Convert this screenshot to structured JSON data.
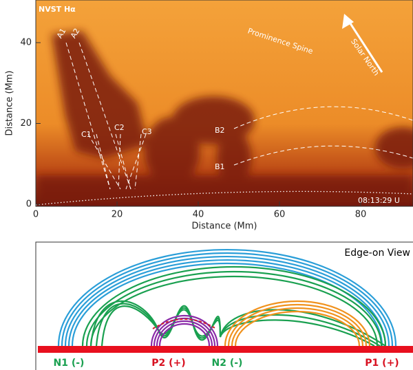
{
  "image_panel": {
    "instrument": "NVST Hα",
    "timestamp": "08:13:29 U",
    "annotations": [
      "Prominence Spine",
      "Solar North",
      "A1",
      "A2",
      "C1",
      "C2",
      "C3",
      "B1",
      "B2"
    ],
    "x_axis": {
      "label": "Distance (Mm)",
      "ticks": [
        0,
        20,
        40,
        60,
        80
      ]
    },
    "y_axis": {
      "label": "Distance (Mm)",
      "ticks": [
        0,
        20,
        40
      ]
    }
  },
  "diagram": {
    "title": "Edge-on View",
    "polarities": [
      "N1 (-)",
      "P2 (+)",
      "N2 (-)",
      "P1 (+)"
    ]
  }
}
